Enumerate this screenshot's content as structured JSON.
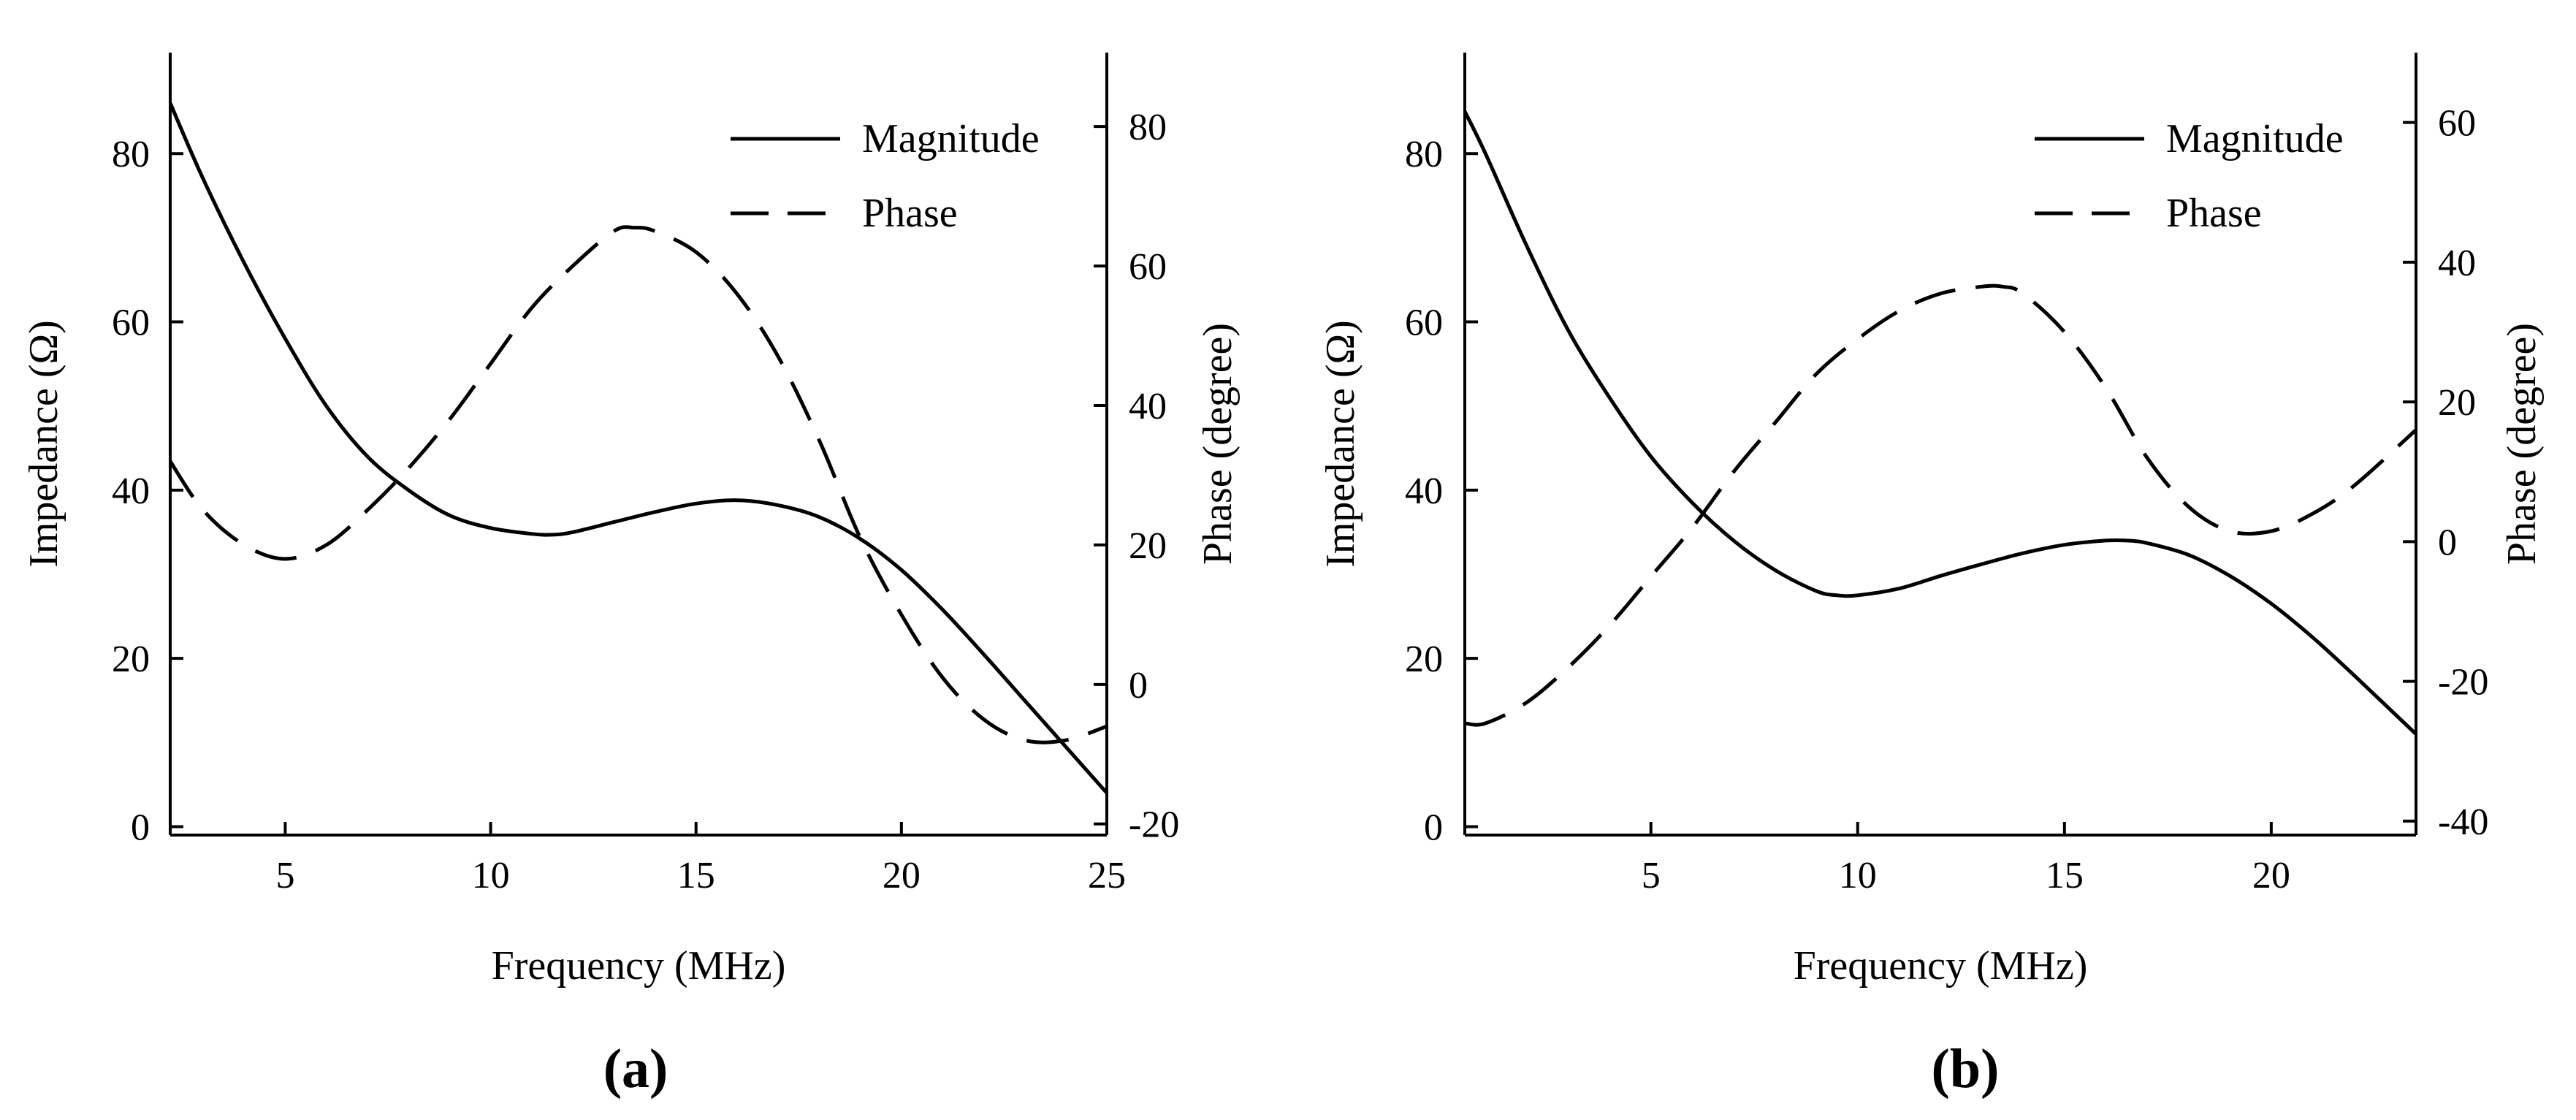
{
  "chart_data": [
    {
      "type": "line",
      "panel_label": "(a)",
      "xlabel": "Frequency (MHz)",
      "ylabel_left": "Impedance (Ω)",
      "ylabel_right": "Phase (degree)",
      "xlim": [
        2.2,
        25
      ],
      "xticks": [
        5,
        10,
        15,
        20,
        25
      ],
      "ylim_left": [
        -1,
        92
      ],
      "yticks_left": [
        0,
        20,
        40,
        60,
        80
      ],
      "ylim_right": [
        -21.6,
        90.6
      ],
      "yticks_right": [
        -20,
        0,
        20,
        40,
        60,
        80
      ],
      "legend_position": "top-right",
      "series": [
        {
          "name": "Magnitude",
          "axis": "left",
          "style": "solid",
          "x": [
            2.2,
            3,
            4,
            5,
            6,
            7,
            8,
            9,
            10,
            11,
            11.5,
            12,
            13,
            14,
            15,
            16,
            17,
            18,
            19,
            20,
            21,
            22,
            23,
            24,
            25
          ],
          "y": [
            86,
            77,
            67,
            58,
            50,
            44,
            40,
            37,
            35.5,
            34.8,
            34.7,
            35,
            36.2,
            37.4,
            38.4,
            38.8,
            38.2,
            36.8,
            34.2,
            30.5,
            25.8,
            20.5,
            15,
            9.5,
            4
          ]
        },
        {
          "name": "Phase",
          "axis": "right",
          "style": "dashed",
          "x": [
            2.2,
            3,
            4,
            5,
            6,
            7,
            8,
            9,
            10,
            11,
            12,
            13,
            13.5,
            14,
            15,
            16,
            17,
            18,
            19,
            20,
            21,
            22,
            23,
            24,
            25
          ],
          "y": [
            32,
            25,
            20,
            18,
            20,
            25,
            31,
            38,
            46,
            54,
            60,
            65,
            65.5,
            65,
            62,
            56,
            47,
            35,
            21,
            10,
            1,
            -5,
            -8,
            -8,
            -6
          ]
        }
      ]
    },
    {
      "type": "line",
      "panel_label": "(b)",
      "xlabel": "Frequency (MHz)",
      "ylabel_left": "Impedance (Ω)",
      "ylabel_right": "Phase (degree)",
      "xlim": [
        0.5,
        23.5
      ],
      "xticks": [
        5,
        10,
        15,
        20
      ],
      "ylim_left": [
        -1,
        92
      ],
      "yticks_left": [
        0,
        20,
        40,
        60,
        80
      ],
      "ylim_right": [
        -42,
        70
      ],
      "yticks_right": [
        -40,
        -20,
        0,
        20,
        40,
        60
      ],
      "legend_position": "top-right",
      "series": [
        {
          "name": "Magnitude",
          "axis": "left",
          "style": "solid",
          "x": [
            0.5,
            1,
            2,
            3,
            4,
            5,
            6,
            7,
            8,
            9,
            9.5,
            10,
            11,
            12,
            13,
            14,
            15,
            16,
            16.5,
            17,
            18,
            19,
            20,
            21,
            22,
            23.5
          ],
          "y": [
            85,
            80,
            69,
            59,
            51,
            44,
            38.5,
            34,
            30.5,
            28,
            27.5,
            27.5,
            28.3,
            29.8,
            31.2,
            32.5,
            33.5,
            34,
            34,
            33.7,
            32.3,
            29.8,
            26.5,
            22.5,
            18,
            11
          ]
        },
        {
          "name": "Phase",
          "axis": "right",
          "style": "dashed",
          "x": [
            0.5,
            1,
            2,
            3,
            4,
            5,
            6,
            7,
            8,
            9,
            10,
            11,
            12,
            13,
            13.5,
            14,
            15,
            16,
            17,
            18,
            19,
            20,
            21,
            22,
            23.5
          ],
          "y": [
            -26,
            -26,
            -23,
            -18,
            -12,
            -5,
            2,
            10,
            17,
            24,
            29,
            33,
            35.5,
            36.5,
            36.5,
            35.5,
            30,
            22,
            12,
            5,
            1.5,
            1.5,
            4,
            8,
            16
          ]
        }
      ]
    }
  ]
}
